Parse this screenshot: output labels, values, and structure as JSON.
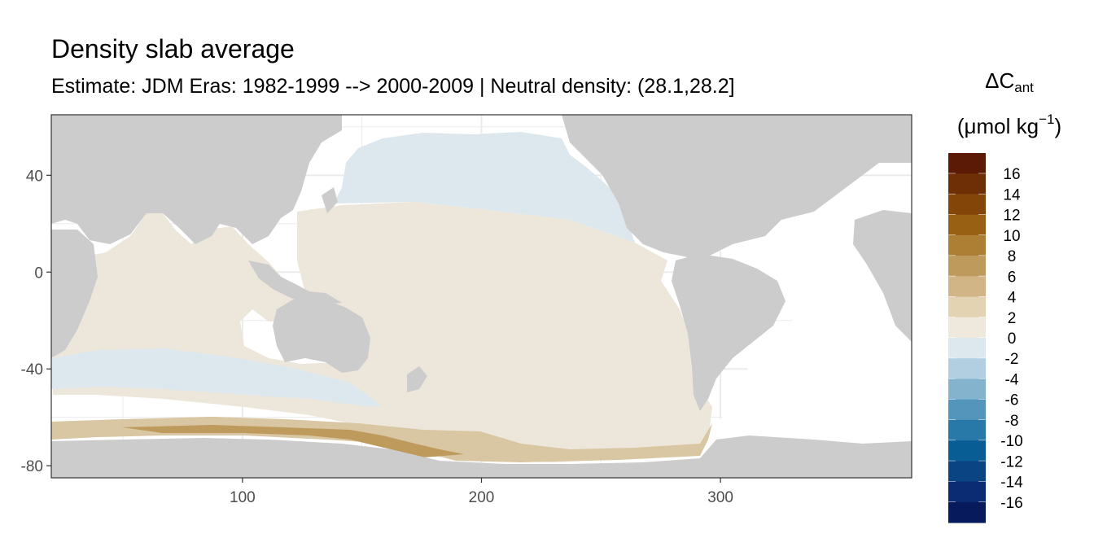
{
  "title": "Density slab average",
  "subtitle": "Estimate: JDM Eras: 1982-1999 --> 2000-2009 | Neutral density: (28.1,28.2]",
  "legend": {
    "symbol": "ΔC",
    "subscript": "ant",
    "unit_prefix": "(μmol kg",
    "unit_sup": "−1",
    "unit_suffix": ")",
    "bins": [
      {
        "label": "16",
        "color": "#5a1a05"
      },
      {
        "label": "14",
        "color": "#6e2f07"
      },
      {
        "label": "12",
        "color": "#844509"
      },
      {
        "label": "10",
        "color": "#976012"
      },
      {
        "label": "8",
        "color": "#ad7f34"
      },
      {
        "label": "6",
        "color": "#bf9a5d"
      },
      {
        "label": "4",
        "color": "#d1b587"
      },
      {
        "label": "2",
        "color": "#e3d3b2"
      },
      {
        "label": "0",
        "color": "#efe8dc"
      },
      {
        "label": "-2",
        "color": "#dde8ee"
      },
      {
        "label": "-4",
        "color": "#b2cfe1"
      },
      {
        "label": "-6",
        "color": "#84b3ce"
      },
      {
        "label": "-8",
        "color": "#5495bb"
      },
      {
        "label": "-10",
        "color": "#2878a8"
      },
      {
        "label": "-12",
        "color": "#095d95"
      },
      {
        "label": "-14",
        "color": "#0a4482"
      },
      {
        "label": "-16",
        "color": "#0b2c72"
      },
      {
        "label": "",
        "color": "#071a5c"
      }
    ]
  },
  "map_data": {
    "type": "heatmap",
    "xlim": [
      20,
      380
    ],
    "ylim": [
      -85,
      65
    ],
    "x_ticks": [
      100,
      200,
      300
    ],
    "x_tick_labels": [
      "100",
      "200",
      "300"
    ],
    "y_ticks": [
      40,
      0,
      -40,
      -80
    ],
    "y_tick_labels": [
      "40",
      "0",
      "-40",
      "-80"
    ],
    "grid": true,
    "colors": {
      "land": "#cccccc",
      "panel": "#ffffff",
      "grid": "#ebebeb",
      "border": "#333333",
      "ocean_positive_small": "#ede6da",
      "ocean_negative_small": "#dde8ee",
      "ocean_positive_medium": "#d9c6a2",
      "ocean_positive_high": "#bf9a5d"
    }
  }
}
